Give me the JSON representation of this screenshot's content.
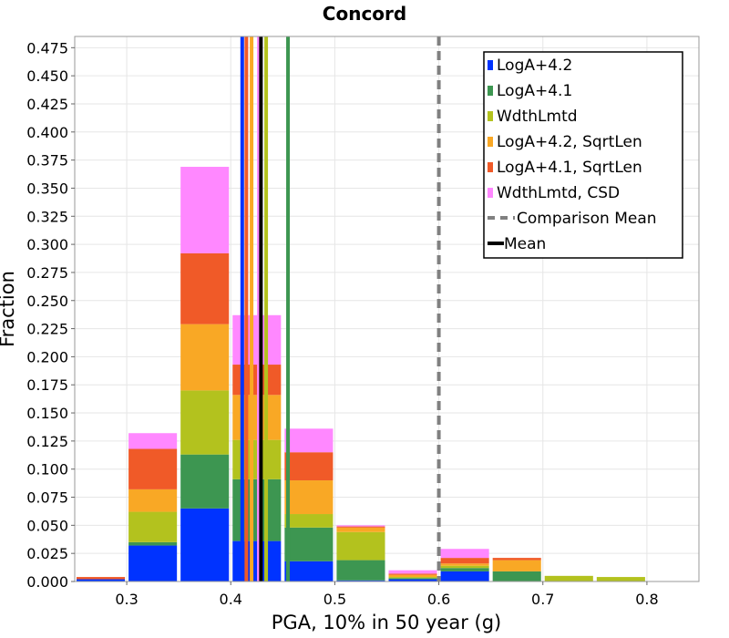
{
  "chart_data": {
    "type": "bar",
    "stacked": true,
    "title": "Concord",
    "xlabel": "PGA, 10% in 50 year (g)",
    "ylabel": "Fraction",
    "xlim": [
      0.25,
      0.85
    ],
    "ylim": [
      0.0,
      0.485
    ],
    "grid": true,
    "legend_position": "top-right",
    "bin_width": 0.05,
    "bins": [
      0.275,
      0.325,
      0.375,
      0.425,
      0.475,
      0.525,
      0.575,
      0.625,
      0.675,
      0.725,
      0.775
    ],
    "x_ticks": [
      {
        "value": 0.3,
        "label": "0.3"
      },
      {
        "value": 0.4,
        "label": "0.4"
      },
      {
        "value": 0.5,
        "label": "0.5"
      },
      {
        "value": 0.6,
        "label": "0.6"
      },
      {
        "value": 0.7,
        "label": "0.7"
      },
      {
        "value": 0.8,
        "label": "0.8"
      }
    ],
    "y_ticks": [
      {
        "value": 0.0,
        "label": "0.000"
      },
      {
        "value": 0.025,
        "label": "0.025"
      },
      {
        "value": 0.05,
        "label": "0.050"
      },
      {
        "value": 0.075,
        "label": "0.075"
      },
      {
        "value": 0.1,
        "label": "0.100"
      },
      {
        "value": 0.125,
        "label": "0.125"
      },
      {
        "value": 0.15,
        "label": "0.150"
      },
      {
        "value": 0.175,
        "label": "0.175"
      },
      {
        "value": 0.2,
        "label": "0.200"
      },
      {
        "value": 0.225,
        "label": "0.225"
      },
      {
        "value": 0.25,
        "label": "0.250"
      },
      {
        "value": 0.275,
        "label": "0.275"
      },
      {
        "value": 0.3,
        "label": "0.300"
      },
      {
        "value": 0.325,
        "label": "0.325"
      },
      {
        "value": 0.35,
        "label": "0.350"
      },
      {
        "value": 0.375,
        "label": "0.375"
      },
      {
        "value": 0.4,
        "label": "0.400"
      },
      {
        "value": 0.425,
        "label": "0.425"
      },
      {
        "value": 0.45,
        "label": "0.450"
      },
      {
        "value": 0.475,
        "label": "0.475"
      }
    ],
    "series": [
      {
        "name": "LogA+4.2",
        "color": "#0033ff",
        "values": [
          0.002,
          0.032,
          0.065,
          0.036,
          0.018,
          0.001,
          0.002,
          0.009,
          0.0,
          0.0,
          0.0
        ]
      },
      {
        "name": "LogA+4.1",
        "color": "#3d9651",
        "values": [
          0.0,
          0.003,
          0.048,
          0.055,
          0.03,
          0.018,
          0.001,
          0.003,
          0.009,
          0.0,
          0.0
        ]
      },
      {
        "name": "WdthLmtd",
        "color": "#b3c21e",
        "values": [
          0.0,
          0.027,
          0.057,
          0.035,
          0.012,
          0.025,
          0.001,
          0.002,
          0.0,
          0.005,
          0.004
        ]
      },
      {
        "name": "LogA+4.2, SqrtLen",
        "color": "#f9a825",
        "values": [
          0.0,
          0.02,
          0.059,
          0.04,
          0.03,
          0.004,
          0.002,
          0.002,
          0.01,
          0.0,
          0.0
        ]
      },
      {
        "name": "LogA+4.1, SqrtLen",
        "color": "#f05a28",
        "values": [
          0.002,
          0.036,
          0.063,
          0.027,
          0.025,
          0.001,
          0.001,
          0.005,
          0.002,
          0.0,
          0.0
        ]
      },
      {
        "name": "WdthLmtd, CSD",
        "color": "#ff88ff",
        "values": [
          0.0,
          0.014,
          0.077,
          0.044,
          0.021,
          0.001,
          0.003,
          0.008,
          0.0,
          0.0,
          0.0
        ]
      }
    ],
    "mean_lines": [
      {
        "series": "LogA+4.2",
        "x": 0.411,
        "color": "#0033ff"
      },
      {
        "series": "LogA+4.1",
        "x": 0.455,
        "color": "#3d9651"
      },
      {
        "series": "WdthLmtd",
        "x": 0.434,
        "color": "#b3c21e"
      },
      {
        "series": "LogA+4.2, SqrtLen",
        "x": 0.42,
        "color": "#f9a825"
      },
      {
        "series": "LogA+4.1, SqrtLen",
        "x": 0.415,
        "color": "#f05a28"
      },
      {
        "series": "WdthLmtd, CSD",
        "x": 0.427,
        "color": "#ff88ff"
      }
    ],
    "mean": {
      "x": 0.429,
      "label": "Mean",
      "color": "#000000"
    },
    "comparison_mean": {
      "x": 0.6,
      "label": "Comparison Mean",
      "color": "#808080"
    }
  }
}
